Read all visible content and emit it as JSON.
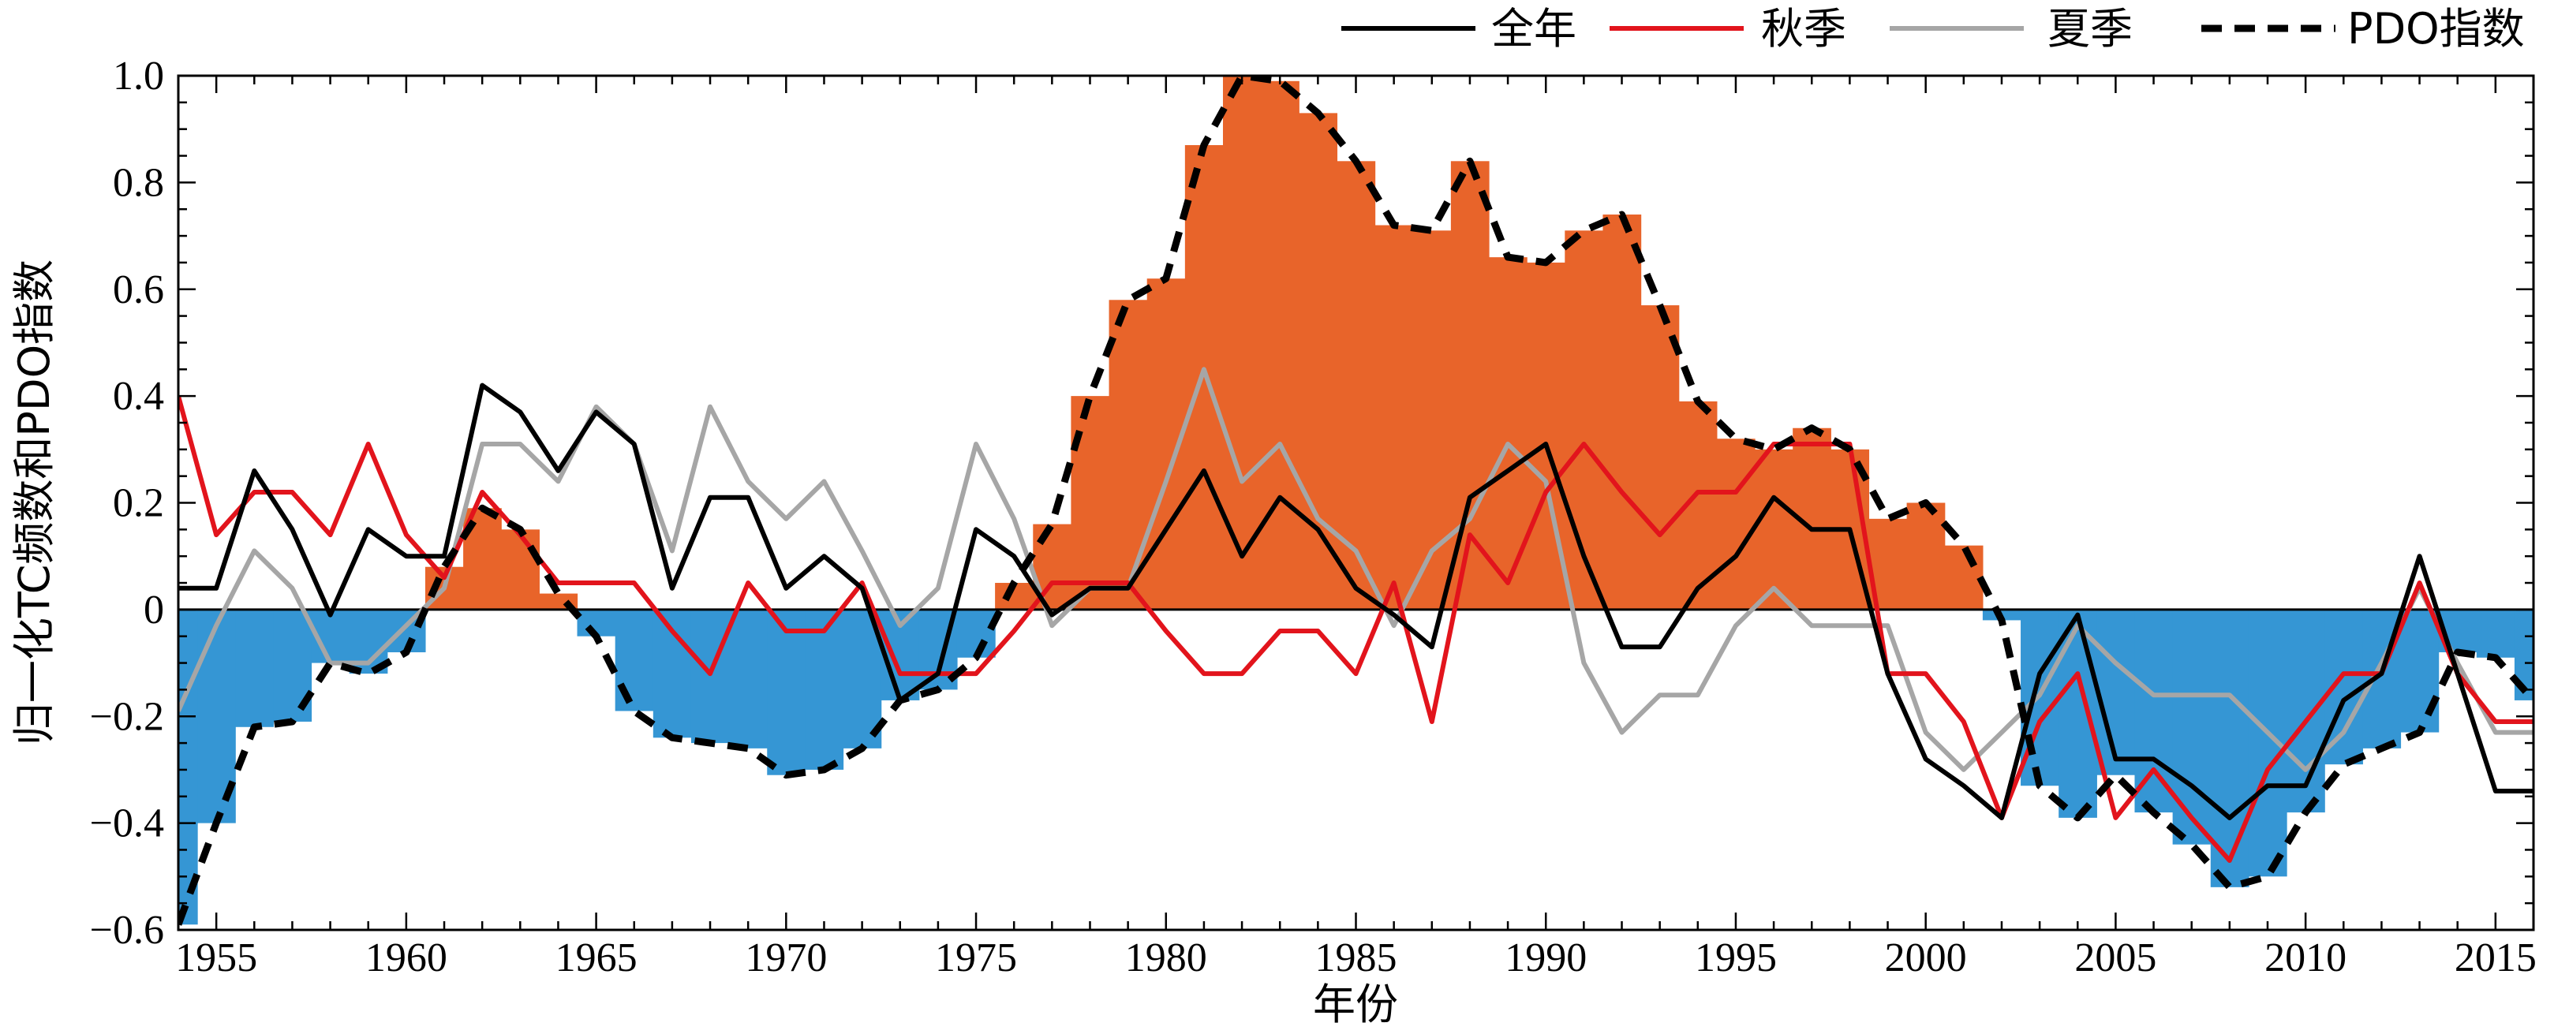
{
  "chart_data": {
    "type": "line",
    "title": "",
    "xlabel": "年份",
    "ylabel": "归一化TC频数和PDO指数",
    "xlim": [
      1954,
      2016
    ],
    "ylim": [
      -0.6,
      1.0
    ],
    "x_ticks": [
      "1955",
      "1960",
      "1965",
      "1970",
      "1975",
      "1980",
      "1985",
      "1990",
      "1995",
      "2000",
      "2005",
      "2010",
      "2015"
    ],
    "y_ticks": [
      "1.0",
      "0.8",
      "0.6",
      "0.4",
      "0.2",
      "0",
      "−0.2",
      "−0.4",
      "−0.6"
    ],
    "grid": false,
    "legend_position": "top-right",
    "x": [
      1954,
      1955,
      1956,
      1957,
      1958,
      1959,
      1960,
      1961,
      1962,
      1963,
      1964,
      1965,
      1966,
      1967,
      1968,
      1969,
      1970,
      1971,
      1972,
      1973,
      1974,
      1975,
      1976,
      1977,
      1978,
      1979,
      1980,
      1981,
      1982,
      1983,
      1984,
      1985,
      1986,
      1987,
      1988,
      1989,
      1990,
      1991,
      1992,
      1993,
      1994,
      1995,
      1996,
      1997,
      1998,
      1999,
      2000,
      2001,
      2002,
      2003,
      2004,
      2005,
      2006,
      2007,
      2008,
      2009,
      2010,
      2011,
      2012,
      2013,
      2014,
      2015,
      2016
    ],
    "series": [
      {
        "name": "全年",
        "color": "#000000",
        "style": "solid",
        "values": [
          0.04,
          0.04,
          0.26,
          0.15,
          -0.01,
          0.15,
          0.1,
          0.1,
          0.42,
          0.37,
          0.26,
          0.37,
          0.31,
          0.04,
          0.21,
          0.21,
          0.04,
          0.1,
          0.04,
          -0.17,
          -0.12,
          0.15,
          0.1,
          -0.01,
          0.04,
          0.04,
          0.15,
          0.26,
          0.1,
          0.21,
          0.15,
          0.04,
          -0.01,
          -0.07,
          0.21,
          0.26,
          0.31,
          0.1,
          -0.07,
          -0.07,
          0.04,
          0.1,
          0.21,
          0.15,
          0.15,
          -0.12,
          -0.28,
          -0.33,
          -0.39,
          -0.12,
          -0.01,
          -0.28,
          -0.28,
          -0.33,
          -0.39,
          -0.33,
          -0.33,
          -0.17,
          -0.12,
          0.1,
          -0.12,
          -0.34,
          -0.34
        ]
      },
      {
        "name": "秋季",
        "color": "#e2141c",
        "style": "solid",
        "values": [
          0.4,
          0.14,
          0.22,
          0.22,
          0.14,
          0.31,
          0.14,
          0.06,
          0.22,
          0.14,
          0.05,
          0.05,
          0.05,
          -0.04,
          -0.12,
          0.05,
          -0.04,
          -0.04,
          0.05,
          -0.12,
          -0.12,
          -0.12,
          -0.04,
          0.05,
          0.05,
          0.05,
          -0.04,
          -0.12,
          -0.12,
          -0.04,
          -0.04,
          -0.12,
          0.05,
          -0.21,
          0.14,
          0.05,
          0.22,
          0.31,
          0.22,
          0.14,
          0.22,
          0.22,
          0.31,
          0.31,
          0.31,
          -0.12,
          -0.12,
          -0.21,
          -0.39,
          -0.21,
          -0.12,
          -0.39,
          -0.3,
          -0.39,
          -0.47,
          -0.3,
          -0.21,
          -0.12,
          -0.12,
          0.05,
          -0.12,
          -0.21,
          -0.21
        ]
      },
      {
        "name": "夏季",
        "color": "#a6a6a6",
        "style": "solid",
        "values": [
          -0.19,
          -0.03,
          0.11,
          0.04,
          -0.1,
          -0.1,
          -0.03,
          0.04,
          0.31,
          0.31,
          0.24,
          0.38,
          0.31,
          0.11,
          0.38,
          0.24,
          0.17,
          0.24,
          0.11,
          -0.03,
          0.04,
          0.31,
          0.17,
          -0.03,
          0.04,
          0.04,
          0.24,
          0.45,
          0.24,
          0.31,
          0.17,
          0.11,
          -0.03,
          0.11,
          0.17,
          0.31,
          0.24,
          -0.1,
          -0.23,
          -0.16,
          -0.16,
          -0.03,
          0.04,
          -0.03,
          -0.03,
          -0.03,
          -0.23,
          -0.3,
          -0.23,
          -0.16,
          -0.03,
          -0.1,
          -0.16,
          -0.16,
          -0.16,
          -0.23,
          -0.3,
          -0.23,
          -0.1,
          0.04,
          -0.1,
          -0.23,
          -0.23
        ]
      },
      {
        "name": "PDO指数",
        "color": "#000000",
        "style": "dashed",
        "values": [
          -0.59,
          -0.4,
          -0.22,
          -0.21,
          -0.1,
          -0.12,
          -0.08,
          0.08,
          0.19,
          0.15,
          0.03,
          -0.05,
          -0.19,
          -0.24,
          -0.25,
          -0.26,
          -0.31,
          -0.3,
          -0.26,
          -0.17,
          -0.15,
          -0.09,
          0.05,
          0.16,
          0.4,
          0.58,
          0.62,
          0.87,
          1.0,
          0.99,
          0.93,
          0.84,
          0.72,
          0.71,
          0.84,
          0.66,
          0.65,
          0.71,
          0.74,
          0.57,
          0.39,
          0.32,
          0.3,
          0.34,
          0.3,
          0.17,
          0.2,
          0.12,
          -0.02,
          -0.33,
          -0.39,
          -0.31,
          -0.38,
          -0.44,
          -0.52,
          -0.5,
          -0.38,
          -0.29,
          -0.26,
          -0.23,
          -0.08,
          -0.09,
          -0.17
        ]
      }
    ],
    "fill": {
      "source": "PDO指数",
      "positive_color": "#e8642a",
      "negative_color": "#3596d4",
      "style": "step"
    }
  }
}
